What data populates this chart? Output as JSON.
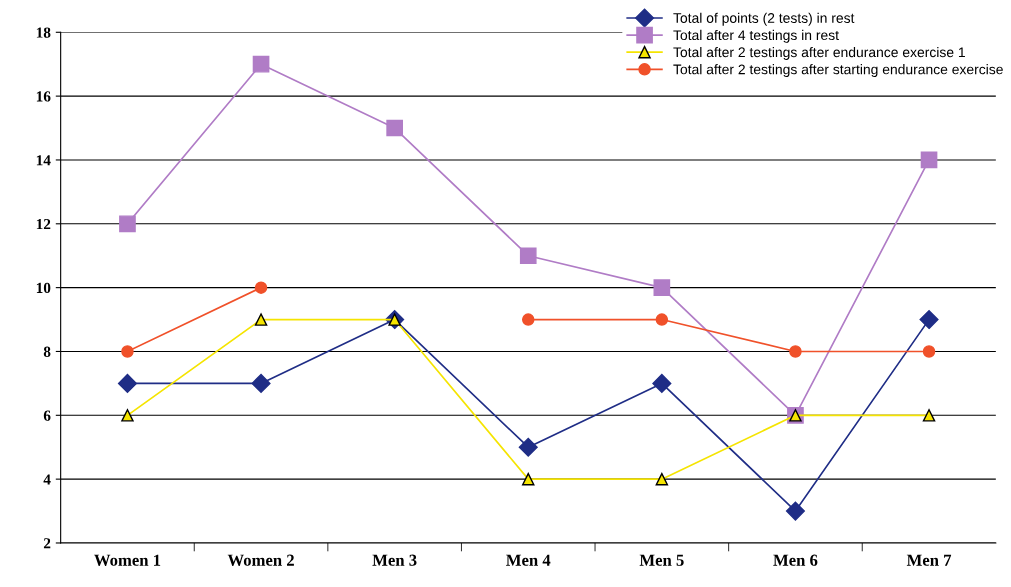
{
  "chart_data": {
    "type": "line",
    "categories": [
      "Women 1",
      "Women 2",
      "Men 3",
      "Men 4",
      "Men 5",
      "Men 6",
      "Men 7"
    ],
    "ylim": [
      2,
      18
    ],
    "yticks": [
      2,
      4,
      6,
      8,
      10,
      12,
      14,
      16,
      18
    ],
    "grid": "y",
    "legend": "top right",
    "line_style": "solid",
    "series": [
      {
        "name": "Total of points (2 tests) in rest",
        "color": "#1f2d86",
        "marker": "diamond",
        "values": [
          7,
          7,
          9,
          5,
          7,
          3,
          9
        ]
      },
      {
        "name": "Total after 4 testings in rest",
        "color": "#b07cc6",
        "marker": "square",
        "values": [
          12,
          17,
          15,
          11,
          10,
          6,
          14
        ]
      },
      {
        "name": "Total after 2 testings after endurance exercise 1",
        "color": "#f5e400",
        "marker": "triangle",
        "values": [
          6,
          9,
          9,
          4,
          4,
          6,
          6
        ]
      },
      {
        "name": "Total after 2 testings after starting endurance exercise",
        "color": "#f0512a",
        "marker": "circle",
        "values": [
          8,
          10,
          null,
          9,
          9,
          8,
          8
        ]
      }
    ]
  }
}
